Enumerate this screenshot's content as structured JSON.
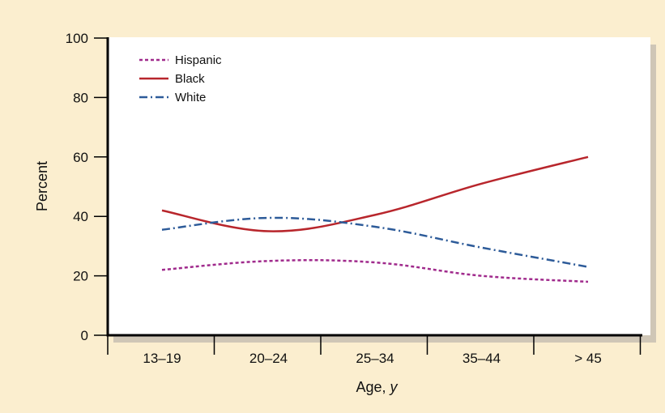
{
  "chart_data": {
    "type": "line",
    "title": "",
    "xlabel": "Age,",
    "xlabel_var": "y",
    "ylabel": "Percent",
    "categories": [
      "13–19",
      "20–24",
      "25–34",
      "35–44",
      "> 45"
    ],
    "ylim": [
      0,
      100
    ],
    "yticks": [
      "0",
      "20",
      "40",
      "60",
      "80",
      "100"
    ],
    "grid": false,
    "legend_position": "top-left",
    "series": [
      {
        "name": "Hispanic",
        "values": [
          22,
          25,
          24.5,
          20,
          18
        ],
        "color": "#a02a8c",
        "dash": "dotted"
      },
      {
        "name": "Black",
        "values": [
          42,
          35,
          40.5,
          51,
          60
        ],
        "color": "#b8262c",
        "dash": "solid"
      },
      {
        "name": "White",
        "values": [
          35.5,
          39.5,
          36.5,
          29.5,
          23
        ],
        "color": "#2d5b99",
        "dash": "dash-dot"
      }
    ]
  }
}
